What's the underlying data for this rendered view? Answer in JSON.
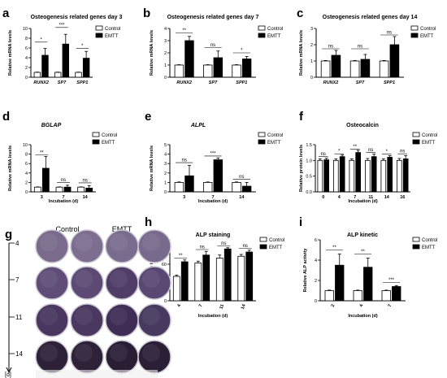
{
  "colors": {
    "control": "#ffffff",
    "emtt": "#000000",
    "axis": "#000000",
    "dish": "#5b4e73",
    "dish_dark": "#3d2f52"
  },
  "legend": {
    "control": "Control",
    "emtt": "EMTT"
  },
  "chart_data": [
    {
      "panel": "a",
      "type": "bar",
      "title": "Osteogenesis related genes day 3",
      "ylabel": "Relative mRNA levels",
      "xlabel": "",
      "ylim": [
        0,
        10
      ],
      "yticks": [
        "0",
        "2",
        "4",
        "6",
        "8",
        "10"
      ],
      "categories": [
        "RUNX2",
        "SP7",
        "SPP1"
      ],
      "italic_categories": true,
      "series": [
        {
          "name": "Control",
          "values": [
            1.0,
            1.0,
            1.0
          ],
          "errors": [
            0.05,
            0.05,
            0.05
          ]
        },
        {
          "name": "EMTT",
          "values": [
            4.5,
            6.8,
            3.9
          ],
          "errors": [
            1.4,
            2.0,
            1.4
          ]
        }
      ],
      "sig": [
        "*",
        "***",
        "*"
      ],
      "sig_offset": [
        1.3,
        1.4,
        0.6
      ],
      "legend": "top-right"
    },
    {
      "panel": "b",
      "type": "bar",
      "title": "Osteogenesis related genes day 7",
      "ylabel": "Relative mRNA levels",
      "xlabel": "",
      "ylim": [
        0,
        4
      ],
      "yticks": [
        "0",
        "1",
        "2",
        "3",
        "4"
      ],
      "categories": [
        "RUNX2",
        "SP7",
        "SPP1"
      ],
      "italic_categories": true,
      "series": [
        {
          "name": "Control",
          "values": [
            1.0,
            1.0,
            1.0
          ],
          "errors": [
            0.03,
            0.03,
            0.03
          ]
        },
        {
          "name": "EMTT",
          "values": [
            3.0,
            1.6,
            1.5
          ],
          "errors": [
            0.35,
            0.55,
            0.2
          ]
        }
      ],
      "sig": [
        "**",
        "ns",
        "*"
      ],
      "sig_offset": [
        0.3,
        0.3,
        0.3
      ],
      "legend": "top-right"
    },
    {
      "panel": "c",
      "type": "bar",
      "title": "Osteogenesis related genes day 14",
      "ylabel": "Relative mRNA levels",
      "xlabel": "",
      "ylim": [
        0,
        3
      ],
      "yticks": [
        "0",
        "1",
        "2",
        "3"
      ],
      "categories": [
        "RUNX2",
        "SP7",
        "SPP1"
      ],
      "italic_categories": true,
      "series": [
        {
          "name": "Control",
          "values": [
            1.0,
            1.0,
            1.0
          ],
          "errors": [
            0.03,
            0.03,
            0.03
          ]
        },
        {
          "name": "EMTT",
          "values": [
            1.35,
            1.1,
            2.0
          ],
          "errors": [
            0.3,
            0.3,
            0.5
          ]
        }
      ],
      "sig": [
        "ns",
        "ns",
        "ns"
      ],
      "sig_offset": [
        0.1,
        0.35,
        0.1
      ],
      "legend": "top-right"
    },
    {
      "panel": "d",
      "type": "bar",
      "title": "BGLAP",
      "italic_title": true,
      "ylabel": "Relative mRNA levels",
      "xlabel": "Incubation (d)",
      "ylim": [
        0,
        10
      ],
      "yticks": [
        "0",
        "2",
        "4",
        "6",
        "8",
        "10"
      ],
      "categories": [
        "3",
        "7",
        "14"
      ],
      "italic_categories": false,
      "series": [
        {
          "name": "Control",
          "values": [
            1.0,
            1.0,
            1.0
          ],
          "errors": [
            0.05,
            0.05,
            0.05
          ]
        },
        {
          "name": "EMTT",
          "values": [
            5.0,
            1.0,
            0.8
          ],
          "errors": [
            2.5,
            0.4,
            0.5
          ]
        }
      ],
      "sig": [
        "**",
        "ns",
        "ns"
      ],
      "sig_offset": [
        0.3,
        0.6,
        0.6
      ],
      "legend": "top-right"
    },
    {
      "panel": "e",
      "type": "bar",
      "title": "ALPL",
      "italic_title": true,
      "ylabel": "Relative mRNA levels",
      "xlabel": "Incubation (d)",
      "ylim": [
        0,
        5
      ],
      "yticks": [
        "0",
        "1",
        "2",
        "3",
        "4",
        "5"
      ],
      "categories": [
        "3",
        "7",
        "14"
      ],
      "italic_categories": false,
      "series": [
        {
          "name": "Control",
          "values": [
            1.0,
            1.0,
            1.0
          ],
          "errors": [
            0.05,
            0.05,
            0.05
          ]
        },
        {
          "name": "EMTT",
          "values": [
            1.7,
            3.4,
            0.6
          ],
          "errors": [
            1.1,
            0.2,
            0.4
          ]
        }
      ],
      "sig": [
        "ns",
        "***",
        "ns"
      ],
      "sig_offset": [
        0.3,
        0.2,
        0.3
      ],
      "legend": "top-right"
    },
    {
      "panel": "f",
      "type": "bar",
      "title": "Osteocalcin",
      "ylabel": "Relative protein levels",
      "xlabel": "Incubation (d)",
      "ylim": [
        0,
        1.5
      ],
      "yticks": [
        "0.0",
        "0.5",
        "1.0",
        "1.5"
      ],
      "categories": [
        "0",
        "4",
        "7",
        "11",
        "14",
        "16"
      ],
      "italic_categories": false,
      "series": [
        {
          "name": "Control",
          "values": [
            1.0,
            1.0,
            1.0,
            1.0,
            1.0,
            1.0
          ],
          "errors": [
            0.05,
            0.05,
            0.05,
            0.06,
            0.05,
            0.06
          ]
        },
        {
          "name": "EMTT",
          "values": [
            1.02,
            1.12,
            1.25,
            1.12,
            1.1,
            1.05
          ],
          "errors": [
            0.05,
            0.05,
            0.07,
            0.08,
            0.05,
            0.1
          ]
        }
      ],
      "sig": [
        "ns",
        "*",
        "**",
        "ns",
        "*",
        "ns"
      ],
      "sig_offset": [
        0.05,
        0.04,
        0.04,
        0.05,
        0.05,
        0.06
      ],
      "legend": "top-right"
    },
    {
      "panel": "h",
      "type": "bar",
      "title": "ALP staining",
      "ylabel": "Fluorescence intensity",
      "xlabel": "Incubation (d)",
      "ylim": [
        0,
        100
      ],
      "yticks": [
        "0",
        "20",
        "40",
        "60",
        "80",
        "100"
      ],
      "categories": [
        "4",
        "7",
        "11",
        "14"
      ],
      "italic_categories": false,
      "rotate_categories": true,
      "series": [
        {
          "name": "Control",
          "values": [
            40,
            62,
            70,
            73
          ],
          "errors": [
            2,
            3,
            5,
            3
          ]
        },
        {
          "name": "EMTT",
          "values": [
            64,
            75,
            85,
            80
          ],
          "errors": [
            3,
            6,
            2,
            3
          ]
        }
      ],
      "sig": [
        "**",
        "ns",
        "ns",
        "ns"
      ],
      "sig_offset": [
        3,
        3,
        3,
        3
      ],
      "legend": "top-right"
    },
    {
      "panel": "i",
      "type": "bar",
      "title": "ALP kinetic",
      "ylabel": "Relative ALP activity",
      "xlabel": "Incubation (d)",
      "ylim": [
        0,
        6
      ],
      "yticks": [
        "0",
        "2",
        "4",
        "6"
      ],
      "categories": [
        "2",
        "4",
        "7"
      ],
      "italic_categories": false,
      "rotate_categories": true,
      "series": [
        {
          "name": "Control",
          "values": [
            1.0,
            1.0,
            1.0
          ],
          "errors": [
            0.05,
            0.05,
            0.05
          ]
        },
        {
          "name": "EMTT",
          "values": [
            3.5,
            3.3,
            1.4
          ],
          "errors": [
            1.1,
            0.9,
            0.1
          ]
        }
      ],
      "sig": [
        "**",
        "**",
        "***"
      ],
      "sig_offset": [
        0.4,
        0.4,
        0.3
      ],
      "legend": "top-right"
    }
  ],
  "panel_g": {
    "label": "g",
    "column_headers": [
      "Control",
      "EMTT"
    ],
    "row_labels": [
      "4",
      "7",
      "11",
      "14"
    ],
    "axis_label": "[d]",
    "shades": [
      [
        "#7a6b8c",
        "#7d6e90",
        "#7a6c8e",
        "#776a8c"
      ],
      [
        "#5f4d78",
        "#5c4a74",
        "#4f3d68",
        "#5a4873"
      ],
      [
        "#49375f",
        "#4a3860",
        "#3f2d55",
        "#473a5e"
      ],
      [
        "#2d2138",
        "#2e2239",
        "#2a1e35",
        "#2b1f37"
      ]
    ]
  }
}
